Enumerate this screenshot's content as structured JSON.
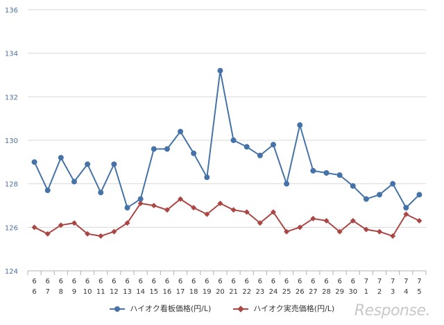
{
  "chart_data": {
    "type": "line",
    "categories": [
      [
        "6",
        "6"
      ],
      [
        "6",
        "7"
      ],
      [
        "6",
        "8"
      ],
      [
        "6",
        "9"
      ],
      [
        "6",
        "10"
      ],
      [
        "6",
        "11"
      ],
      [
        "6",
        "12"
      ],
      [
        "6",
        "13"
      ],
      [
        "6",
        "14"
      ],
      [
        "6",
        "15"
      ],
      [
        "6",
        "16"
      ],
      [
        "6",
        "17"
      ],
      [
        "6",
        "18"
      ],
      [
        "6",
        "19"
      ],
      [
        "6",
        "20"
      ],
      [
        "6",
        "21"
      ],
      [
        "6",
        "22"
      ],
      [
        "6",
        "23"
      ],
      [
        "6",
        "24"
      ],
      [
        "6",
        "25"
      ],
      [
        "6",
        "26"
      ],
      [
        "6",
        "27"
      ],
      [
        "6",
        "28"
      ],
      [
        "6",
        "29"
      ],
      [
        "6",
        "30"
      ],
      [
        "7",
        "1"
      ],
      [
        "7",
        "2"
      ],
      [
        "7",
        "3"
      ],
      [
        "7",
        "4"
      ],
      [
        "7",
        "5"
      ]
    ],
    "series": [
      {
        "name": "ハイオク看板価格(円/L)",
        "color": "#4572a7",
        "marker": "circle",
        "values": [
          129.0,
          127.7,
          129.2,
          128.1,
          128.9,
          127.6,
          128.9,
          126.9,
          127.3,
          129.6,
          129.6,
          130.4,
          129.4,
          128.3,
          133.2,
          130.0,
          129.7,
          129.3,
          129.8,
          128.0,
          130.7,
          128.6,
          128.5,
          128.4,
          127.9,
          127.3,
          127.5,
          128.0,
          126.9,
          127.5
        ]
      },
      {
        "name": "ハイオク実売価格(円/L)",
        "color": "#aa4643",
        "marker": "diamond",
        "values": [
          126.0,
          125.7,
          126.1,
          126.2,
          125.7,
          125.6,
          125.8,
          126.2,
          127.1,
          127.0,
          126.8,
          127.3,
          126.9,
          126.6,
          127.1,
          126.8,
          126.7,
          126.2,
          126.7,
          125.8,
          126.0,
          126.4,
          126.3,
          125.8,
          126.3,
          125.9,
          125.8,
          125.6,
          126.6,
          126.3
        ]
      }
    ],
    "yticks": [
      "124",
      "126",
      "128",
      "130",
      "132",
      "134",
      "136"
    ],
    "ylim": [
      124,
      136
    ],
    "grid": true,
    "legend_position": "bottom"
  },
  "watermark": "Response."
}
